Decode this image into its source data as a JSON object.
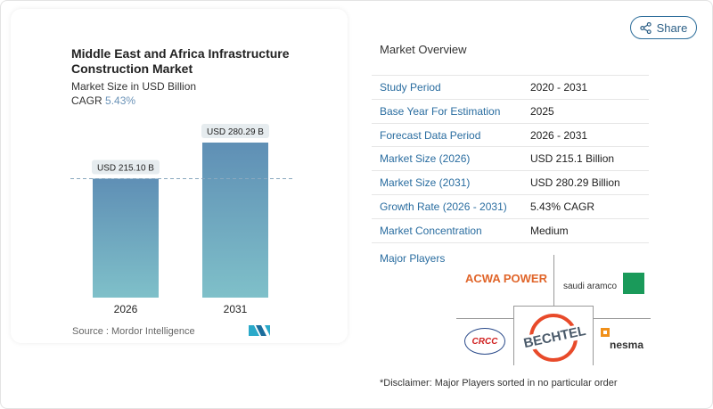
{
  "chart_card": {
    "title": "Middle East and Africa Infrastructure Construction Market",
    "subtitle": "Market Size in USD Billion",
    "cagr_label": "CAGR",
    "cagr_value": "5.43%",
    "source": "Source :  Mordor Intelligence"
  },
  "chart_data": {
    "type": "bar",
    "categories": [
      "2026",
      "2031"
    ],
    "values": [
      215.1,
      280.29
    ],
    "data_labels": [
      "USD 215.10 B",
      "USD 280.29 B"
    ],
    "ylabel": "Market Size in USD Billion",
    "ylim": [
      0,
      280.29
    ],
    "reference_line": 215.1,
    "colors": {
      "top": "#5f8fb5",
      "bottom": "#7fc0c9"
    }
  },
  "share": {
    "label": "Share",
    "icon": "share-icon"
  },
  "overview": {
    "title": "Market Overview",
    "rows": [
      {
        "k": "Study Period",
        "v": "2020 - 2031"
      },
      {
        "k": "Base Year For Estimation",
        "v": "2025"
      },
      {
        "k": "Forecast Data Period",
        "v": "2026 - 2031"
      },
      {
        "k": "Market Size (2026)",
        "v": "USD 215.1 Billion"
      },
      {
        "k": "Market Size (2031)",
        "v": "USD 280.29 Billion"
      },
      {
        "k": "Growth Rate (2026 - 2031)",
        "v": "5.43% CAGR"
      },
      {
        "k": "Market Concentration",
        "v": "Medium"
      }
    ]
  },
  "major_players": {
    "title": "Major Players",
    "logos": [
      "ACWA POWER",
      "saudi aramco",
      "CRCC",
      "BECHTEL",
      "nesma"
    ],
    "disclaimer": "*Disclaimer: Major Players sorted in no particular order"
  }
}
